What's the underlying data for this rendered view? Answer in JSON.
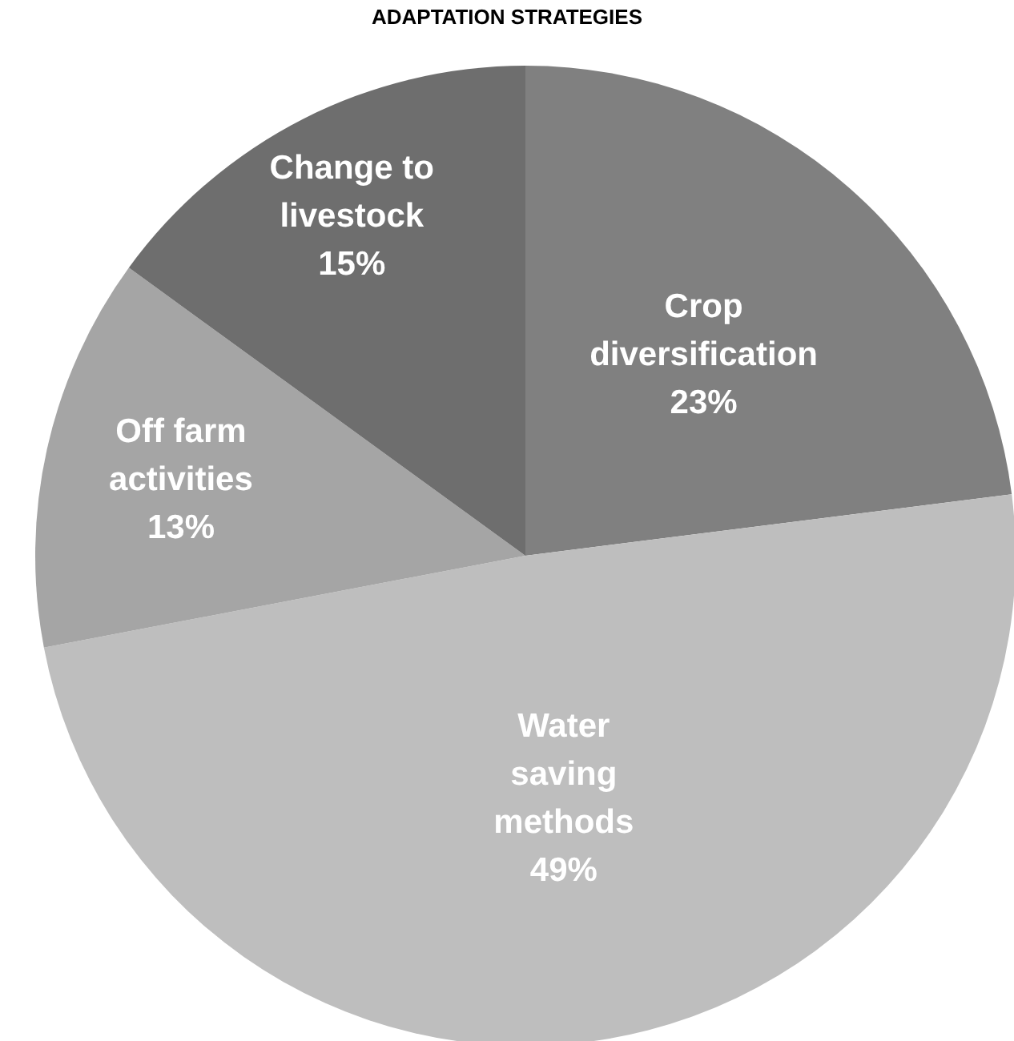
{
  "chart_data": {
    "type": "pie",
    "title": "ADAPTATION STRATEGIES",
    "categories": [
      "Crop diversification",
      "Water saving methods",
      "Off farm activities",
      "Change to livestock"
    ],
    "values": [
      23,
      49,
      13,
      15
    ],
    "value_labels": [
      "23%",
      "49%",
      "13%",
      "15%"
    ],
    "colors": [
      "#808080",
      "#bebebe",
      "#a5a5a5",
      "#6e6e6e"
    ],
    "legend": false
  }
}
